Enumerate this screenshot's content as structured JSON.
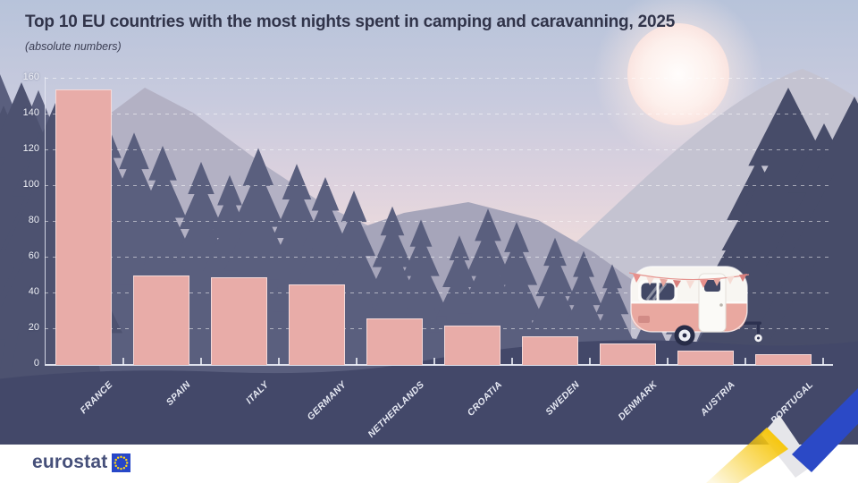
{
  "header": {
    "title": "Top 10 EU countries with the most nights spent in camping and caravanning, 2025",
    "subtitle": "(absolute numbers)"
  },
  "chart_data": {
    "type": "bar",
    "title": "Top 10 EU countries with the most nights spent in camping and caravanning, 2025",
    "subtitle": "(absolute numbers)",
    "categories": [
      "FRANCE",
      "SPAIN",
      "ITALY",
      "GERMANY",
      "NETHERLANDS",
      "CROATIA",
      "SWEDEN",
      "DENMARK",
      "AUSTRIA",
      "PORTUGAL"
    ],
    "values": [
      154,
      50,
      49,
      45,
      26,
      22,
      16,
      12,
      8,
      6
    ],
    "xlabel": "",
    "ylabel": "",
    "ylim": [
      0,
      160
    ],
    "yticks": [
      0,
      20,
      40,
      60,
      80,
      100,
      120,
      140,
      160
    ],
    "grid": "horizontal-dashed",
    "legend": "none",
    "bar_color": "#e8aca8"
  },
  "footer": {
    "logo_text": "eurostat",
    "logo_icon": "eu-flag-icon"
  },
  "colors": {
    "bar": "#e8aca8",
    "title_text": "#31344a",
    "axis_text": "#f1f3f9",
    "ribbon_yellow": "#f7c70f",
    "ribbon_blue": "#2b49c6",
    "eu_flag_blue": "#2747c8",
    "foreground": "#434869"
  }
}
